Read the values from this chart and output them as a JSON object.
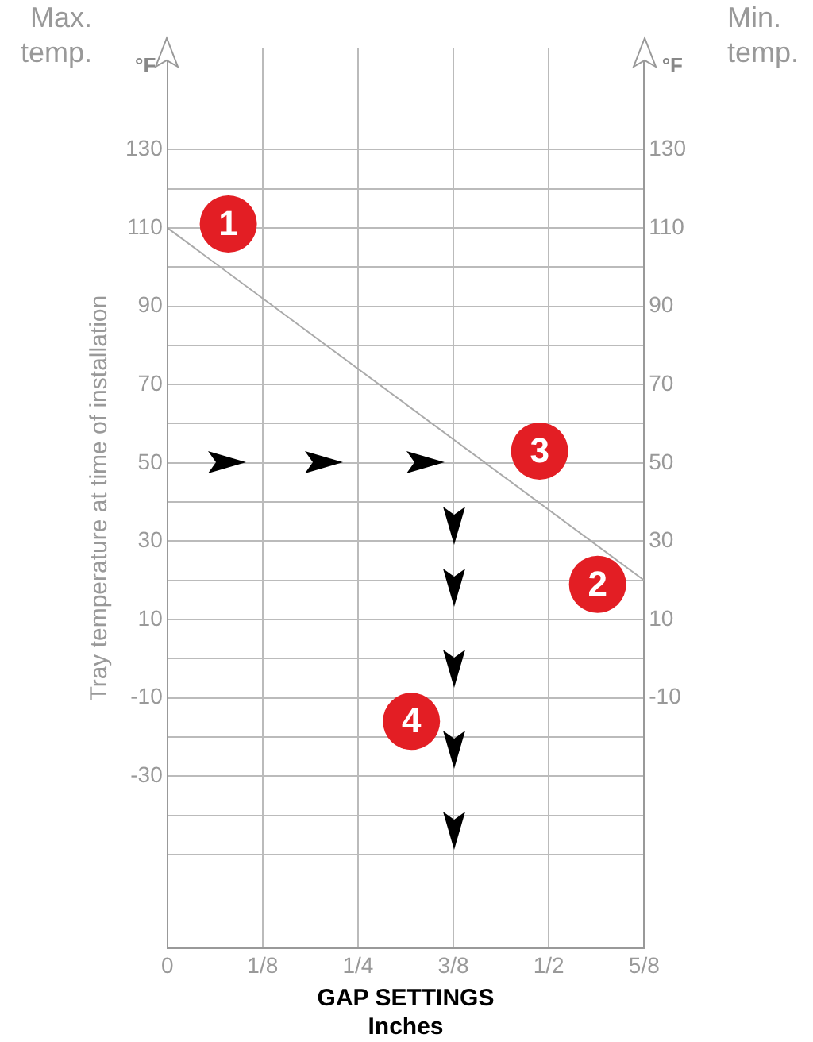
{
  "chart_data": {
    "type": "line",
    "ylabel": "Tray temperature at time of installation",
    "xlabel": "GAP SETTINGS\nInches",
    "x": [
      0,
      0.625
    ],
    "series": [
      {
        "color": "#aaaaaa",
        "values": [
          110,
          20
        ]
      }
    ],
    "xlim": [
      0,
      0.625
    ],
    "xticks": [
      {
        "value": 0,
        "label": "0"
      },
      {
        "value": 0.125,
        "label": "1/8"
      },
      {
        "value": 0.25,
        "label": "1/4"
      },
      {
        "value": 0.375,
        "label": "3/8"
      },
      {
        "value": 0.5,
        "label": "1/2"
      },
      {
        "value": 0.625,
        "label": "5/8"
      }
    ],
    "ylim": [
      -74,
      156
    ],
    "yticks": [
      {
        "value": -50,
        "label": null
      },
      {
        "value": -40,
        "label": null
      },
      -30,
      {
        "value": -20,
        "label": null
      },
      -10,
      {
        "value": 0,
        "label": null
      },
      10,
      {
        "value": 20,
        "label": null
      },
      30,
      {
        "value": 40,
        "label": null
      },
      50,
      {
        "value": 60,
        "label": null
      },
      70,
      {
        "value": 80,
        "label": null
      },
      90,
      {
        "value": 100,
        "label": null
      },
      110,
      {
        "value": 120,
        "label": null
      },
      130
    ],
    "y2lim": [
      -74,
      156
    ],
    "y2ticks": [
      -10,
      10,
      30,
      50,
      70,
      90,
      110,
      130
    ],
    "grid": true,
    "legend": false,
    "marker": "none",
    "line_style": "solid",
    "annotations": [
      "Max. temp.",
      "°F",
      "°F",
      "Min. temp.",
      {
        "text": "1",
        "x": 0.08,
        "y": 111
      },
      {
        "text": "2",
        "x": 0.564,
        "y": 19
      },
      {
        "text": "3",
        "x": 0.488,
        "y": 53
      },
      {
        "text": "4",
        "x": 0.32,
        "y": -16
      }
    ]
  }
}
